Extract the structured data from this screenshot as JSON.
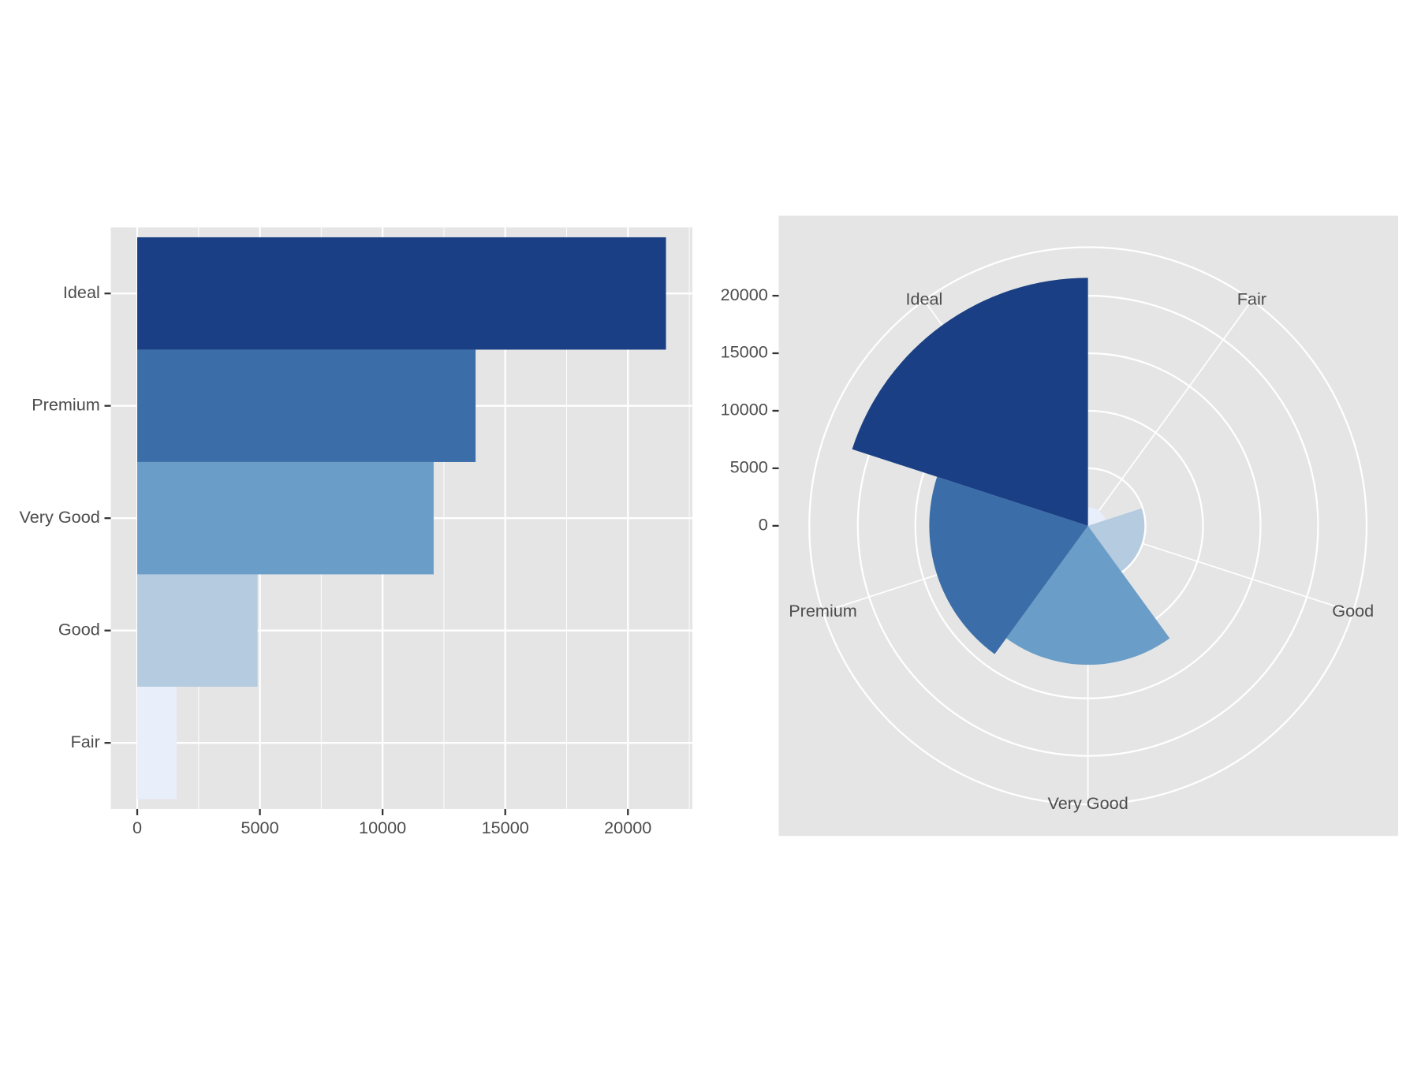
{
  "chart_data": [
    {
      "type": "bar",
      "orientation": "horizontal",
      "categories": [
        "Fair",
        "Good",
        "Very Good",
        "Premium",
        "Ideal"
      ],
      "values": [
        1610,
        4906,
        12082,
        13791,
        21551
      ],
      "colors": [
        "#e9eefb",
        "#b4cbe0",
        "#6a9dc7",
        "#3b6ea8",
        "#1a3f84"
      ],
      "xlim": [
        -1078,
        22629
      ],
      "xticks": [
        0,
        5000,
        10000,
        15000,
        20000
      ],
      "minor_xticks": [
        2500,
        7500,
        12500,
        17500,
        22500
      ],
      "grid": true
    },
    {
      "type": "rose",
      "categories": [
        "Fair",
        "Good",
        "Very Good",
        "Premium",
        "Ideal"
      ],
      "values": [
        1610,
        4906,
        12082,
        13791,
        21551
      ],
      "colors": [
        "#e9eefb",
        "#b4cbe0",
        "#6a9dc7",
        "#3b6ea8",
        "#1a3f84"
      ],
      "ylim": [
        0,
        24219
      ],
      "yticks": [
        0,
        5000,
        10000,
        15000,
        20000
      ],
      "grid": true
    }
  ]
}
